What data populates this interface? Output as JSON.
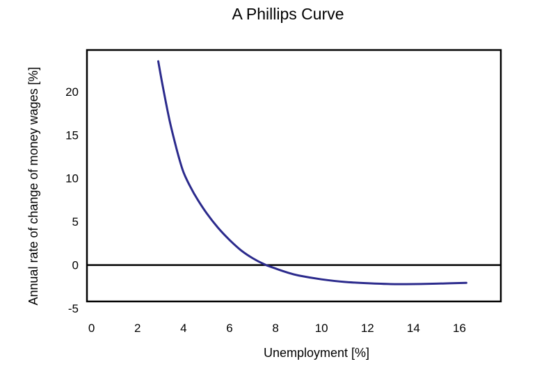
{
  "chart_data": {
    "type": "line",
    "title": "A Phillips Curve",
    "xlabel": "Unemployment [%]",
    "ylabel": "Annual rate of change of money wages [%]",
    "xlim": [
      -0.2,
      17.8
    ],
    "ylim": [
      -4.2,
      24.8
    ],
    "xticks": [
      "0",
      "2",
      "4",
      "6",
      "8",
      "10",
      "12",
      "14",
      "16"
    ],
    "yticks": [
      "20",
      "15",
      "10",
      "5",
      "0",
      "-5"
    ],
    "grid": false,
    "legend": "none",
    "zero_line": true,
    "line_color": "#2b2a8c",
    "series": [
      {
        "x": [
          2.9,
          3.05,
          3.2,
          3.4,
          3.6,
          3.8,
          4.0,
          4.3,
          4.6,
          5.0,
          5.5,
          6.0,
          6.5,
          7.0,
          7.5,
          8.0,
          8.5,
          9.0,
          10.0,
          11.0,
          12.0,
          13.0,
          14.0,
          15.0,
          16.3
        ],
        "y": [
          23.5,
          21.3,
          19.2,
          16.6,
          14.4,
          12.4,
          10.7,
          9.0,
          7.6,
          6.0,
          4.3,
          2.9,
          1.7,
          0.8,
          0.1,
          -0.4,
          -0.85,
          -1.2,
          -1.65,
          -1.95,
          -2.1,
          -2.2,
          -2.2,
          -2.15,
          -2.05
        ]
      }
    ]
  }
}
